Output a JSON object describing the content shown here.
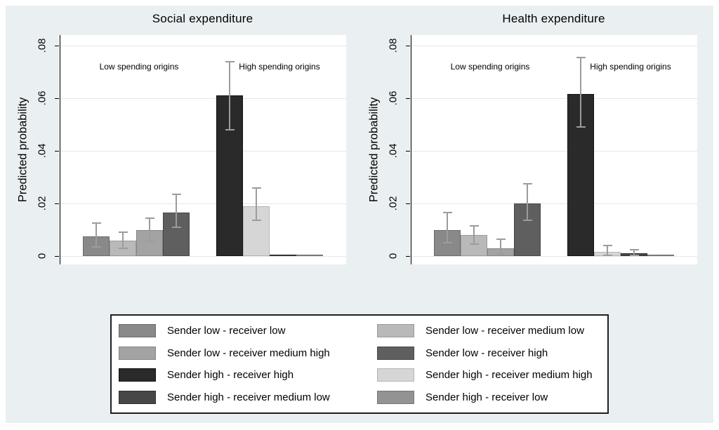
{
  "figure": {
    "background_color": "#eaf0f1",
    "plot_background_color": "#ffffff",
    "gridline_color": "#e7e7e7",
    "axis_color": "#000000",
    "errorbar_color": "#9c9c9c"
  },
  "legend": {
    "entries": [
      {
        "label": "Sender low - receiver low",
        "color": "#898989",
        "border": "#6b6b6b"
      },
      {
        "label": "Sender low - receiver medium low",
        "color": "#b9b9b9",
        "border": "#9a9a9a"
      },
      {
        "label": "Sender low -  receiver medium high",
        "color": "#a3a3a3",
        "border": "#868686"
      },
      {
        "label": "Sender low - receiver high",
        "color": "#5f5f5f",
        "border": "#474747"
      },
      {
        "label": "Sender high - receiver high",
        "color": "#2a2a2a",
        "border": "#101010"
      },
      {
        "label": "Sender high - receiver medium high",
        "color": "#d6d6d6",
        "border": "#b5b5b5"
      },
      {
        "label": "Sender high - receiver medium low",
        "color": "#474747",
        "border": "#303030"
      },
      {
        "label": "Sender high - receiver low",
        "color": "#939393",
        "border": "#767676"
      }
    ]
  },
  "chart_data": [
    {
      "type": "bar",
      "title": "Social expenditure",
      "ylabel": "Predicted probability",
      "ylim": [
        0,
        0.0875
      ],
      "yticks": [
        0,
        0.02,
        0.04,
        0.06,
        0.08
      ],
      "ytick_labels": [
        "0",
        ".02",
        ".04",
        ".06",
        ".08"
      ],
      "grid": true,
      "legend_position": "bottom-shared",
      "group_annotations": [
        "Low spending origins",
        "High spending origins"
      ],
      "series": [
        {
          "name": "Sender low - receiver low",
          "group": "Low spending origins",
          "value": 0.0075,
          "ci": [
            0.0035,
            0.0125
          ]
        },
        {
          "name": "Sender low - receiver medium low",
          "group": "Low spending origins",
          "value": 0.006,
          "ci": [
            0.003,
            0.009
          ]
        },
        {
          "name": "Sender low - receiver medium high",
          "group": "Low spending origins",
          "value": 0.01,
          "ci": [
            0.0055,
            0.0145
          ]
        },
        {
          "name": "Sender low - receiver high",
          "group": "Low spending origins",
          "value": 0.0165,
          "ci": [
            0.011,
            0.0235
          ]
        },
        {
          "name": "Sender high - receiver high",
          "group": "High spending origins",
          "value": 0.061,
          "ci": [
            0.048,
            0.074
          ]
        },
        {
          "name": "Sender high - receiver medium high",
          "group": "High spending origins",
          "value": 0.019,
          "ci": [
            0.0135,
            0.026
          ]
        },
        {
          "name": "Sender high - receiver medium low",
          "group": "High spending origins",
          "value": 0.0005,
          "ci": null
        },
        {
          "name": "Sender high - receiver low",
          "group": "High spending origins",
          "value": 0.0002,
          "ci": null
        }
      ]
    },
    {
      "type": "bar",
      "title": "Health expenditure",
      "ylabel": "Predicted probability",
      "ylim": [
        0,
        0.0875
      ],
      "yticks": [
        0,
        0.02,
        0.04,
        0.06,
        0.08
      ],
      "ytick_labels": [
        "0",
        ".02",
        ".04",
        ".06",
        ".08"
      ],
      "grid": true,
      "legend_position": "bottom-shared",
      "group_annotations": [
        "Low spending origins",
        "High spending origins"
      ],
      "series": [
        {
          "name": "Sender low - receiver low",
          "group": "Low spending origins",
          "value": 0.01,
          "ci": [
            0.005,
            0.0165
          ]
        },
        {
          "name": "Sender low - receiver medium low",
          "group": "Low spending origins",
          "value": 0.008,
          "ci": [
            0.0045,
            0.0115
          ]
        },
        {
          "name": "Sender low - receiver medium high",
          "group": "Low spending origins",
          "value": 0.003,
          "ci": [
            0.0008,
            0.0065
          ]
        },
        {
          "name": "Sender low - receiver high",
          "group": "Low spending origins",
          "value": 0.02,
          "ci": [
            0.0135,
            0.0275
          ]
        },
        {
          "name": "Sender high - receiver high",
          "group": "High spending origins",
          "value": 0.0615,
          "ci": [
            0.049,
            0.0755
          ]
        },
        {
          "name": "Sender high - receiver medium high",
          "group": "High spending origins",
          "value": 0.0015,
          "ci": [
            0.0004,
            0.004
          ]
        },
        {
          "name": "Sender high - receiver medium low",
          "group": "High spending origins",
          "value": 0.001,
          "ci": [
            0.0002,
            0.0025
          ]
        },
        {
          "name": "Sender high - receiver low",
          "group": "High spending origins",
          "value": 0.0003,
          "ci": null
        }
      ]
    }
  ]
}
